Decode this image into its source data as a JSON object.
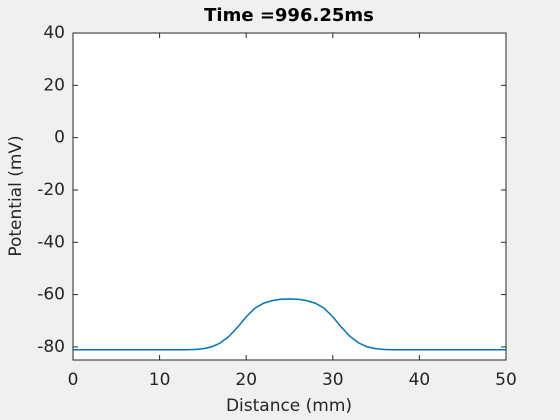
{
  "chart_data": {
    "type": "line",
    "title": "Time =996.25ms",
    "x_label": "Distance (mm)",
    "y_label": "Potential (mV)",
    "x": [
      0,
      1,
      2,
      3,
      4,
      5,
      6,
      7,
      8,
      9,
      10,
      11,
      12,
      13,
      14,
      15,
      16,
      17,
      18,
      19,
      20,
      21,
      22,
      23,
      24,
      25,
      26,
      27,
      28,
      29,
      30,
      31,
      32,
      33,
      34,
      35,
      36,
      37,
      38,
      39,
      40,
      41,
      42,
      43,
      44,
      45,
      46,
      47,
      48,
      49,
      50
    ],
    "series": [
      {
        "color": "#0072bd",
        "values": [
          -81.1,
          -81.1,
          -81.1,
          -81.1,
          -81.1,
          -81.1,
          -81.1,
          -81.1,
          -81.1,
          -81.1,
          -81.1,
          -81.1,
          -81.1,
          -81.1,
          -81,
          -80.7,
          -80,
          -78.5,
          -76,
          -72.5,
          -68.5,
          -65.2,
          -63.3,
          -62.3,
          -61.8,
          -61.7,
          -61.8,
          -62.3,
          -63.3,
          -65.2,
          -68.5,
          -72.5,
          -76,
          -78.5,
          -80,
          -80.7,
          -81,
          -81.1,
          -81.1,
          -81.1,
          -81.1,
          -81.1,
          -81.1,
          -81.1,
          -81.1,
          -81.1,
          -81.1,
          -81.1,
          -81.1,
          -81.1,
          -81.1
        ]
      }
    ],
    "xlim": [
      0,
      50
    ],
    "xticks": [
      0,
      10,
      20,
      30,
      40,
      50
    ],
    "ylim": [
      -85,
      40
    ],
    "yticks": [
      -80,
      -60,
      -40,
      -20,
      0,
      20,
      40
    ]
  }
}
